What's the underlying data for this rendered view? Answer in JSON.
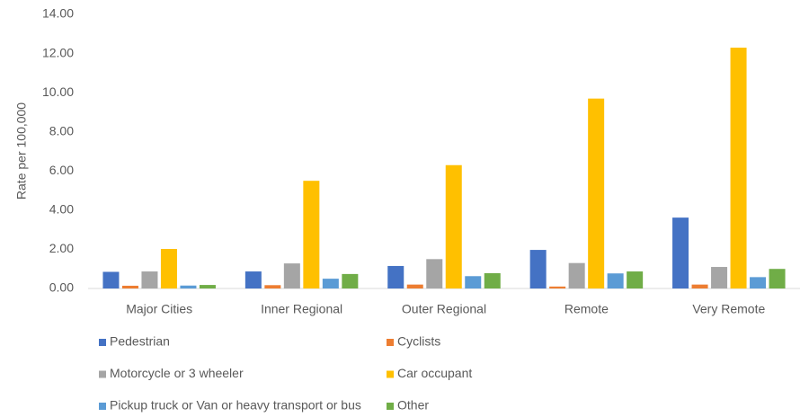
{
  "chart_data": {
    "type": "bar",
    "y_label": "Rate per 100,000",
    "categories": [
      "Major Cities",
      "Inner Regional",
      "Outer Regional",
      "Remote",
      "Very Remote"
    ],
    "series": [
      {
        "name": "Pedestrian",
        "color": "#4472c4",
        "values": [
          0.85,
          0.87,
          1.15,
          1.97,
          3.62
        ]
      },
      {
        "name": "Cyclists",
        "color": "#ed7d31",
        "values": [
          0.14,
          0.17,
          0.2,
          0.1,
          0.2
        ]
      },
      {
        "name": "Motorcycle or 3 wheeler",
        "color": "#a5a5a5",
        "values": [
          0.87,
          1.28,
          1.5,
          1.3,
          1.1
        ]
      },
      {
        "name": "Car occupant",
        "color": "#ffc000",
        "values": [
          2.02,
          5.5,
          6.3,
          9.7,
          12.3
        ]
      },
      {
        "name": "Pickup truck or Van or heavy transport or bus",
        "color": "#5b9bd5",
        "values": [
          0.15,
          0.5,
          0.63,
          0.77,
          0.58
        ]
      },
      {
        "name": "Other",
        "color": "#70ad47",
        "values": [
          0.18,
          0.74,
          0.78,
          0.87,
          1.0
        ]
      }
    ],
    "ylim": [
      0,
      14
    ],
    "yticks": [
      {
        "value": 0,
        "label": "0.00"
      },
      {
        "value": 2,
        "label": "2.00"
      },
      {
        "value": 4,
        "label": "4.00"
      },
      {
        "value": 6,
        "label": "6.00"
      },
      {
        "value": 8,
        "label": "8.00"
      },
      {
        "value": 10,
        "label": "10.00"
      },
      {
        "value": 12,
        "label": "12.00"
      },
      {
        "value": 14,
        "label": "14.00"
      }
    ],
    "grid": false,
    "legend": "bottom"
  }
}
